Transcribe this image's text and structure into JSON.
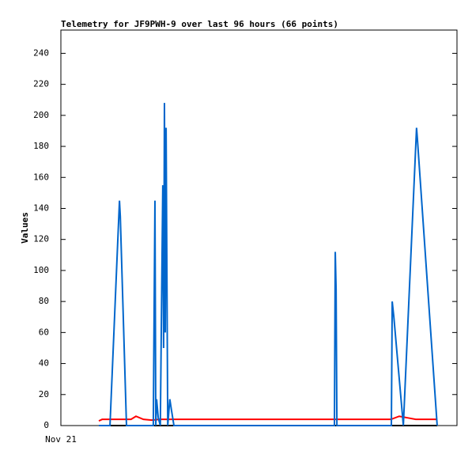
{
  "chart_data": {
    "type": "line",
    "title": "Telemetry for JF9PWH-9 over last 96 hours (66 points)",
    "y_label": "Values",
    "xlim": [
      0,
      96
    ],
    "xticks": [
      {
        "value": 0,
        "label": "Nov 21"
      }
    ],
    "ylim": [
      0,
      255
    ],
    "yticks": [
      0,
      20,
      40,
      60,
      80,
      100,
      120,
      140,
      160,
      180,
      200,
      220,
      240
    ],
    "grid": false,
    "series": [
      {
        "color": "#000000",
        "x": [
          9.2,
          91.2
        ],
        "values": [
          0,
          0
        ]
      },
      {
        "color": "#ff0000",
        "x": [
          9.2,
          10.0,
          17.0,
          18.2,
          20.0,
          22.0,
          24.0,
          80.0,
          82.0,
          84.0,
          86.0,
          91.2
        ],
        "values": [
          3,
          4,
          4,
          6,
          4,
          3.5,
          4,
          4,
          6,
          5,
          4,
          4
        ]
      },
      {
        "color": "#0066cc",
        "x": [
          9.2,
          11.9,
          14.2,
          14.4,
          15.9,
          22.4,
          22.6,
          22.8,
          23.0,
          23.2,
          23.6,
          24.1,
          24.7,
          24.9,
          25.1,
          25.3,
          25.5,
          25.7,
          25.9,
          26.4,
          26.8,
          27.4,
          66.3,
          66.5,
          66.7,
          66.9,
          80.1,
          80.3,
          80.7,
          83.0,
          86.2,
          86.4,
          91.2
        ],
        "values": [
          0,
          0,
          145,
          135,
          0,
          0,
          73,
          145,
          0,
          17,
          5,
          0,
          155,
          50,
          208,
          60,
          192,
          97,
          0,
          17,
          10,
          0,
          0,
          112,
          88,
          0,
          0,
          80,
          70,
          0,
          192,
          185,
          0
        ]
      }
    ]
  }
}
